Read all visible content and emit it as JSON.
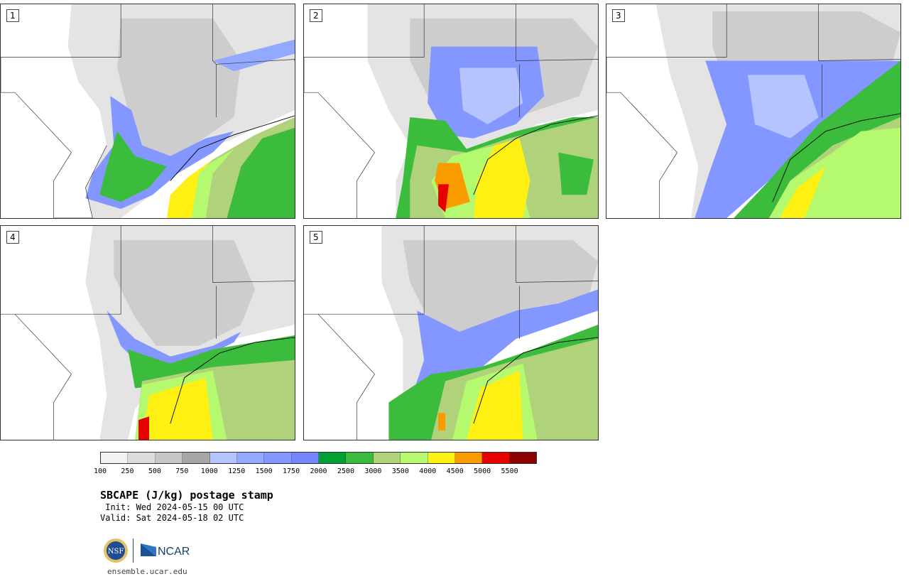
{
  "panels": [
    {
      "label": "1"
    },
    {
      "label": "2"
    },
    {
      "label": "3"
    },
    {
      "label": "4"
    },
    {
      "label": "5"
    }
  ],
  "colorbar": {
    "colors": [
      "#f2f2f2",
      "#dcdcdc",
      "#c6c6c6",
      "#a6a6a6",
      "#b5c4ff",
      "#93a9ff",
      "#8496ff",
      "#7485ff",
      "#00a032",
      "#3cbc3c",
      "#b0d27a",
      "#b5fa6e",
      "#fff014",
      "#fa9b00",
      "#e60000",
      "#8c0000"
    ],
    "ticks": [
      "100",
      "250",
      "500",
      "750",
      "1000",
      "1250",
      "1500",
      "1750",
      "2000",
      "2500",
      "3000",
      "3500",
      "4000",
      "4500",
      "5000",
      "5500"
    ]
  },
  "title": "SBCAPE (J/kg) postage stamp",
  "init": " Init: Wed 2024-05-15 00 UTC",
  "valid": "Valid: Sat 2024-05-18 02 UTC",
  "logos": {
    "nsf": "NSF",
    "ncar": "NCAR"
  },
  "website": "ensemble.ucar.edu"
}
